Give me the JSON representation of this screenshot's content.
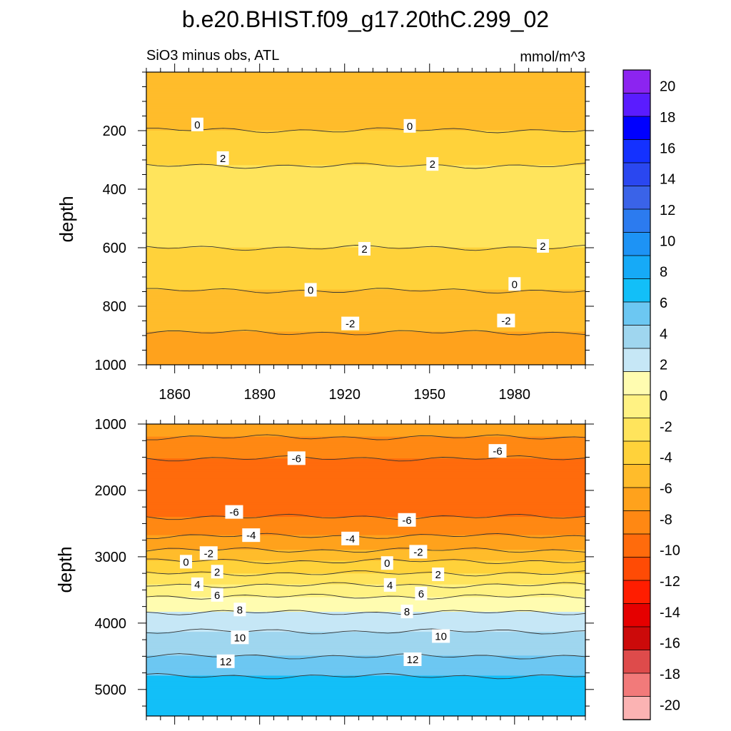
{
  "title": "b.e20.BHIST.f09_g17.20thC.299_02",
  "colors": {
    "levels": [
      -20,
      -18,
      -16,
      -14,
      -12,
      -10,
      -8,
      -6,
      -4,
      -2,
      0,
      2,
      4,
      6,
      8,
      10,
      12,
      14,
      16,
      18,
      20
    ],
    "fills": [
      "#8c24f0",
      "#5a1cff",
      "#0000ff",
      "#1431ff",
      "#2a47f0",
      "#3a63e8",
      "#2c7bef",
      "#1d93f5",
      "#16aaf7",
      "#12bff8",
      "#6cc7f2",
      "#9fd6ef",
      "#c6e7f6",
      "#fffcb0",
      "#fff283",
      "#ffe45c",
      "#ffd23a",
      "#ffbc2b",
      "#ffa21c",
      "#ff8813",
      "#ff6b0c",
      "#ff4b05",
      "#ff1d00",
      "#e50000",
      "#cc0a0a",
      "#de4b4b",
      "#f27a7a",
      "#fbb3b3"
    ]
  },
  "chart_data": [
    {
      "type": "contour",
      "panel": "top",
      "subtitle_left": "SiO3 minus obs, ATL",
      "subtitle_right": "mmol/m^3",
      "xlabel": "",
      "ylabel": "depth",
      "xlim": [
        1850,
        2005
      ],
      "ylim": [
        1000,
        0
      ],
      "x_ticks": [
        1860,
        1890,
        1920,
        1950,
        1980
      ],
      "y_ticks": [
        200,
        400,
        600,
        800,
        1000
      ],
      "profile": [
        {
          "depth": 0,
          "value": -0.6
        },
        {
          "depth": 110,
          "value": -0.9
        },
        {
          "depth": 175,
          "value": -0.3
        },
        {
          "depth": 230,
          "value": 0.4
        },
        {
          "depth": 300,
          "value": 1.8
        },
        {
          "depth": 400,
          "value": 2.8
        },
        {
          "depth": 480,
          "value": 2.9
        },
        {
          "depth": 560,
          "value": 2.4
        },
        {
          "depth": 640,
          "value": 1.6
        },
        {
          "depth": 720,
          "value": 0.4
        },
        {
          "depth": 780,
          "value": -0.5
        },
        {
          "depth": 870,
          "value": -1.8
        },
        {
          "depth": 950,
          "value": -2.6
        },
        {
          "depth": 1000,
          "value": -3.0
        }
      ],
      "contour_labels": [
        {
          "text": "0",
          "year": 1868,
          "depth": 180
        },
        {
          "text": "0",
          "year": 1943,
          "depth": 185
        },
        {
          "text": "2",
          "year": 1877,
          "depth": 295
        },
        {
          "text": "2",
          "year": 1951,
          "depth": 315
        },
        {
          "text": "2",
          "year": 1927,
          "depth": 605
        },
        {
          "text": "2",
          "year": 1990,
          "depth": 595
        },
        {
          "text": "0",
          "year": 1908,
          "depth": 745
        },
        {
          "text": "0",
          "year": 1980,
          "depth": 725
        },
        {
          "text": "-2",
          "year": 1922,
          "depth": 860
        },
        {
          "text": "-2",
          "year": 1977,
          "depth": 850
        }
      ]
    },
    {
      "type": "contour",
      "panel": "bottom",
      "xlabel": "",
      "ylabel": "depth",
      "xlim": [
        1850,
        2005
      ],
      "ylim": [
        1000,
        5400
      ],
      "x_ticks": [
        1860,
        1890,
        1920,
        1950,
        1980
      ],
      "y_ticks": [
        1000,
        2000,
        3000,
        4000,
        5000
      ],
      "profile": [
        {
          "depth": 1000,
          "value": -2.8
        },
        {
          "depth": 1200,
          "value": -4.0
        },
        {
          "depth": 1550,
          "value": -6.2
        },
        {
          "depth": 2000,
          "value": -7.0
        },
        {
          "depth": 2300,
          "value": -6.5
        },
        {
          "depth": 2500,
          "value": -5.5
        },
        {
          "depth": 2750,
          "value": -3.5
        },
        {
          "depth": 3000,
          "value": -1.0
        },
        {
          "depth": 3100,
          "value": 0.5
        },
        {
          "depth": 3300,
          "value": 2.5
        },
        {
          "depth": 3600,
          "value": 6.0
        },
        {
          "depth": 3900,
          "value": 8.5
        },
        {
          "depth": 4200,
          "value": 10.5
        },
        {
          "depth": 4600,
          "value": 12.5
        },
        {
          "depth": 4800,
          "value": 14.0
        },
        {
          "depth": 5400,
          "value": 14.5
        }
      ],
      "contour_labels": [
        {
          "text": "-6",
          "year": 1903,
          "depth": 1520
        },
        {
          "text": "-6",
          "year": 1974,
          "depth": 1410
        },
        {
          "text": "-6",
          "year": 1881,
          "depth": 2330
        },
        {
          "text": "-6",
          "year": 1942,
          "depth": 2450
        },
        {
          "text": "-4",
          "year": 1887,
          "depth": 2680
        },
        {
          "text": "-4",
          "year": 1922,
          "depth": 2730
        },
        {
          "text": "-2",
          "year": 1872,
          "depth": 2950
        },
        {
          "text": "-2",
          "year": 1946,
          "depth": 2930
        },
        {
          "text": "0",
          "year": 1864,
          "depth": 3080
        },
        {
          "text": "0",
          "year": 1935,
          "depth": 3100
        },
        {
          "text": "2",
          "year": 1875,
          "depth": 3230
        },
        {
          "text": "2",
          "year": 1953,
          "depth": 3270
        },
        {
          "text": "4",
          "year": 1868,
          "depth": 3420
        },
        {
          "text": "4",
          "year": 1936,
          "depth": 3430
        },
        {
          "text": "6",
          "year": 1875,
          "depth": 3580
        },
        {
          "text": "6",
          "year": 1947,
          "depth": 3560
        },
        {
          "text": "8",
          "year": 1883,
          "depth": 3800
        },
        {
          "text": "8",
          "year": 1942,
          "depth": 3830
        },
        {
          "text": "10",
          "year": 1883,
          "depth": 4220
        },
        {
          "text": "10",
          "year": 1954,
          "depth": 4200
        },
        {
          "text": "12",
          "year": 1878,
          "depth": 4580
        },
        {
          "text": "12",
          "year": 1944,
          "depth": 4550
        }
      ]
    },
    {
      "type": "colorbar",
      "tick_labels": [
        "20",
        "18",
        "16",
        "14",
        "12",
        "10",
        "8",
        "6",
        "4",
        "2",
        "0",
        "-2",
        "-4",
        "-6",
        "-8",
        "-10",
        "-12",
        "-14",
        "-16",
        "-18",
        "-20"
      ]
    }
  ]
}
